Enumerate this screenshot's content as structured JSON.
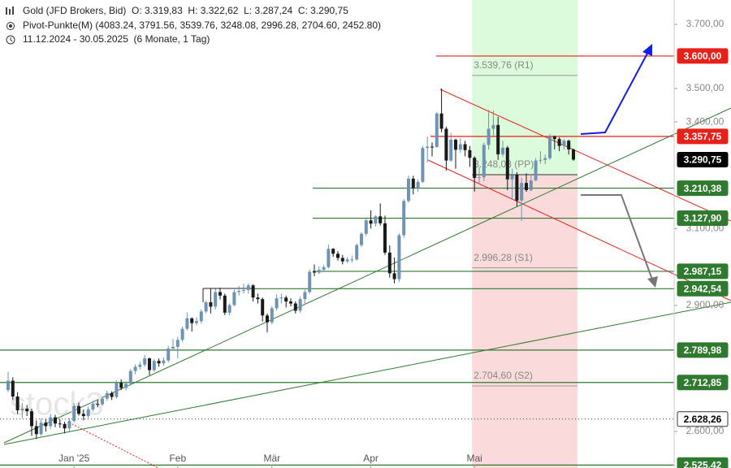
{
  "chart_data": {
    "type": "candlestick",
    "header": [
      "Gold (JFD Brokers, Bid)  O: 3.319,83  H: 3.322,62  L: 3.287,24  C: 3.290,75",
      "Pivot-Punkte(M) (4083.24, 3791.56, 3539.76, 3248.08, 2996.28, 2704.60, 2452.80)",
      "11.12.2024 - 30.05.2025  (6 Monate, 1 Tag)"
    ],
    "watermark": "stock3",
    "log_scale": true,
    "up_color": "#6f93b3",
    "down_color": "#1a1a1a",
    "ylim": [
      2519,
      3779
    ],
    "yticks": [
      {
        "value": 2600,
        "label": "2.600,00"
      },
      {
        "value": 2900,
        "label": "2.900,00"
      },
      {
        "value": 3100,
        "label": "3.100,00"
      },
      {
        "value": 3400,
        "label": "3.400,00"
      },
      {
        "value": 3500,
        "label": "3.500,00"
      },
      {
        "value": 3700,
        "label": "3.700,00"
      }
    ],
    "categories": [
      null,
      null,
      null,
      null,
      null,
      null,
      null,
      null,
      null,
      null,
      null,
      null,
      null,
      null,
      "Jan '25",
      null,
      null,
      null,
      null,
      null,
      null,
      null,
      null,
      null,
      null,
      null,
      null,
      null,
      null,
      null,
      null,
      null,
      null,
      null,
      null,
      null,
      "Feb",
      null,
      null,
      null,
      null,
      null,
      null,
      null,
      null,
      null,
      null,
      null,
      null,
      null,
      null,
      null,
      null,
      null,
      null,
      null,
      "Mär",
      null,
      null,
      null,
      null,
      null,
      null,
      null,
      null,
      null,
      null,
      null,
      null,
      null,
      null,
      null,
      null,
      null,
      null,
      null,
      null,
      "Apr",
      null,
      null,
      null,
      null,
      null,
      null,
      null,
      null,
      null,
      null,
      null,
      null,
      null,
      null,
      null,
      null,
      null,
      null,
      null,
      null,
      null,
      "Mai",
      null,
      null,
      null,
      null,
      null,
      null,
      null,
      null,
      null,
      null,
      null,
      null,
      null,
      null,
      null,
      null,
      null,
      null,
      null,
      null,
      null
    ],
    "candles": [
      [
        2695,
        2738,
        2690,
        2717
      ],
      [
        2717,
        2725,
        2672,
        2680
      ],
      [
        2680,
        2690,
        2640,
        2648
      ],
      [
        2648,
        2665,
        2630,
        2652
      ],
      [
        2652,
        2660,
        2635,
        2646
      ],
      [
        2646,
        2652,
        2590,
        2612
      ],
      [
        2612,
        2625,
        2583,
        2594
      ],
      [
        2594,
        2630,
        2590,
        2620
      ],
      [
        2620,
        2628,
        2600,
        2612
      ],
      [
        2612,
        2640,
        2605,
        2632
      ],
      [
        2632,
        2638,
        2610,
        2618
      ],
      [
        2618,
        2628,
        2608,
        2617
      ],
      [
        2617,
        2622,
        2596,
        2607
      ],
      [
        2607,
        2630,
        2600,
        2624
      ],
      [
        2624,
        2665,
        2620,
        2658
      ],
      [
        2658,
        2666,
        2636,
        2640
      ],
      [
        2640,
        2650,
        2625,
        2635
      ],
      [
        2635,
        2656,
        2630,
        2650
      ],
      [
        2650,
        2670,
        2645,
        2663
      ],
      [
        2663,
        2672,
        2655,
        2662
      ],
      [
        2662,
        2680,
        2658,
        2675
      ],
      [
        2675,
        2694,
        2670,
        2688
      ],
      [
        2688,
        2692,
        2672,
        2679
      ],
      [
        2679,
        2718,
        2675,
        2712
      ],
      [
        2712,
        2720,
        2695,
        2700
      ],
      [
        2700,
        2716,
        2694,
        2710
      ],
      [
        2710,
        2745,
        2706,
        2740
      ],
      [
        2740,
        2756,
        2732,
        2750
      ],
      [
        2750,
        2762,
        2744,
        2755
      ],
      [
        2755,
        2778,
        2750,
        2770
      ],
      [
        2770,
        2772,
        2730,
        2742
      ],
      [
        2742,
        2768,
        2738,
        2764
      ],
      [
        2764,
        2770,
        2750,
        2758
      ],
      [
        2758,
        2772,
        2752,
        2765
      ],
      [
        2765,
        2800,
        2760,
        2794
      ],
      [
        2794,
        2817,
        2790,
        2798
      ],
      [
        2798,
        2822,
        2770,
        2815
      ],
      [
        2815,
        2848,
        2810,
        2842
      ],
      [
        2842,
        2882,
        2838,
        2868
      ],
      [
        2868,
        2870,
        2835,
        2856
      ],
      [
        2856,
        2870,
        2850,
        2861
      ],
      [
        2861,
        2890,
        2855,
        2885
      ],
      [
        2885,
        2912,
        2880,
        2908
      ],
      [
        2908,
        2942,
        2880,
        2897
      ],
      [
        2897,
        2942,
        2890,
        2934
      ],
      [
        2934,
        2945,
        2915,
        2925
      ],
      [
        2925,
        2930,
        2876,
        2882
      ],
      [
        2882,
        2905,
        2875,
        2901
      ],
      [
        2901,
        2940,
        2898,
        2934
      ],
      [
        2934,
        2950,
        2925,
        2937
      ],
      [
        2937,
        2955,
        2930,
        2939
      ],
      [
        2939,
        2956,
        2930,
        2951
      ],
      [
        2951,
        2954,
        2910,
        2920
      ],
      [
        2920,
        2930,
        2905,
        2916
      ],
      [
        2916,
        2920,
        2860,
        2875
      ],
      [
        2875,
        2880,
        2833,
        2858
      ],
      [
        2858,
        2898,
        2853,
        2893
      ],
      [
        2893,
        2928,
        2888,
        2918
      ],
      [
        2918,
        2930,
        2905,
        2920
      ],
      [
        2920,
        2925,
        2895,
        2910
      ],
      [
        2910,
        2918,
        2898,
        2905
      ],
      [
        2905,
        2910,
        2880,
        2887
      ],
      [
        2887,
        2922,
        2882,
        2916
      ],
      [
        2916,
        2940,
        2905,
        2934
      ],
      [
        2934,
        2992,
        2930,
        2986
      ],
      [
        2986,
        3005,
        2975,
        2984
      ],
      [
        2984,
        3000,
        2980,
        2991
      ],
      [
        2991,
        3004,
        2985,
        2998
      ],
      [
        2998,
        3057,
        2995,
        3046
      ],
      [
        3046,
        3048,
        3025,
        3033
      ],
      [
        3033,
        3040,
        3015,
        3022
      ],
      [
        3022,
        3030,
        3005,
        3013
      ],
      [
        3013,
        3024,
        3008,
        3018
      ],
      [
        3018,
        3028,
        3010,
        3018
      ],
      [
        3018,
        3060,
        3015,
        3056
      ],
      [
        3056,
        3090,
        3050,
        3086
      ],
      [
        3086,
        3128,
        3080,
        3122
      ],
      [
        3122,
        3149,
        3100,
        3113
      ],
      [
        3113,
        3136,
        3105,
        3133
      ],
      [
        3133,
        3168,
        3108,
        3114
      ],
      [
        3114,
        3135,
        3030,
        3036
      ],
      [
        3036,
        3055,
        2971,
        2982
      ],
      [
        2982,
        3023,
        2956,
        2967
      ],
      [
        2967,
        3087,
        2960,
        3082
      ],
      [
        3082,
        3180,
        3075,
        3175
      ],
      [
        3175,
        3245,
        3170,
        3237
      ],
      [
        3237,
        3245,
        3193,
        3211
      ],
      [
        3211,
        3235,
        3200,
        3228
      ],
      [
        3228,
        3330,
        3225,
        3324
      ],
      [
        3324,
        3357,
        3283,
        3328
      ],
      [
        3328,
        3340,
        3300,
        3327
      ],
      [
        3327,
        3430,
        3325,
        3425
      ],
      [
        3425,
        3500,
        3370,
        3380
      ],
      [
        3380,
        3386,
        3260,
        3288
      ],
      [
        3288,
        3368,
        3285,
        3348
      ],
      [
        3348,
        3351,
        3265,
        3319
      ],
      [
        3319,
        3352,
        3310,
        3335
      ],
      [
        3335,
        3345,
        3300,
        3318
      ],
      [
        3318,
        3330,
        3270,
        3296
      ],
      [
        3296,
        3300,
        3201,
        3239
      ],
      [
        3239,
        3270,
        3225,
        3241
      ],
      [
        3241,
        3340,
        3230,
        3333
      ],
      [
        3333,
        3436,
        3320,
        3380
      ],
      [
        3380,
        3434,
        3360,
        3391
      ],
      [
        3391,
        3415,
        3290,
        3306
      ],
      [
        3306,
        3345,
        3300,
        3325
      ],
      [
        3325,
        3330,
        3205,
        3235
      ],
      [
        3235,
        3265,
        3180,
        3247
      ],
      [
        3247,
        3255,
        3160,
        3176
      ],
      [
        3176,
        3240,
        3120,
        3225
      ],
      [
        3225,
        3252,
        3200,
        3205
      ],
      [
        3205,
        3250,
        3202,
        3232
      ],
      [
        3232,
        3295,
        3230,
        3288
      ],
      [
        3288,
        3315,
        3280,
        3290
      ],
      [
        3290,
        3305,
        3278,
        3295
      ],
      [
        3295,
        3365,
        3290,
        3357
      ],
      [
        3357,
        3360,
        3320,
        3350
      ],
      [
        3350,
        3355,
        3315,
        3330
      ],
      [
        3330,
        3350,
        3320,
        3345
      ],
      [
        3345,
        3348,
        3305,
        3320
      ],
      [
        3319.83,
        3322.62,
        3287.24,
        3290.75
      ]
    ],
    "pivots": [
      {
        "value": 3539.76,
        "label": "3.539,76 (R1)"
      },
      {
        "value": 3248.08,
        "label": "3.248,08 (PP)"
      },
      {
        "value": 2996.28,
        "label": "2.996,28 (S1)"
      },
      {
        "value": 2704.6,
        "label": "2.704,60 (S2)"
      }
    ],
    "last_price": {
      "value": 3290.75,
      "label": "3.290,75",
      "color": "#000000"
    },
    "levels": [
      {
        "value": 3600,
        "label": "3.600,00",
        "color": "#e8201a"
      },
      {
        "value": 3357.75,
        "label": "3.357,75",
        "color": "#e8201a"
      },
      {
        "value": 3210.38,
        "label": "3.210,38",
        "color": "#2f7a2f"
      },
      {
        "value": 3127.9,
        "label": "3.127,90",
        "color": "#2f7a2f"
      },
      {
        "value": 2987.15,
        "label": "2.987,15",
        "color": "#2f7a2f"
      },
      {
        "value": 2942.54,
        "label": "2.942,54",
        "color": "#2f7a2f"
      },
      {
        "value": 2789.98,
        "label": "2.789,98",
        "color": "#2f7a2f"
      },
      {
        "value": 2712.85,
        "label": "2.712,85",
        "color": "#2f7a2f"
      },
      {
        "value": 2628.26,
        "label": "2.628,26",
        "color": "#555555",
        "dotted": true
      },
      {
        "value": 2525.42,
        "label": "2.525,42",
        "color": "#2f7a2f"
      }
    ]
  }
}
